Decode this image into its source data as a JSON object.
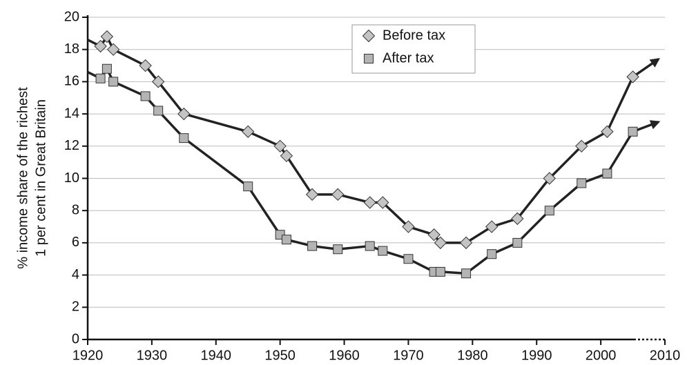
{
  "chart_data": {
    "type": "line",
    "ylabel": [
      "% income share of the richest",
      "1 per cent in Great Britain"
    ],
    "xlim": [
      1920,
      2010
    ],
    "xticks": [
      1920,
      1930,
      1940,
      1950,
      1960,
      1970,
      1980,
      1990,
      2000,
      2010
    ],
    "ylim": [
      0,
      20
    ],
    "yticks": [
      0,
      2,
      4,
      6,
      8,
      10,
      12,
      14,
      16,
      18,
      20
    ],
    "grid": true,
    "legend": "top-center",
    "x": [
      1920,
      1922,
      1923,
      1924,
      1929,
      1931,
      1935,
      1945,
      1950,
      1951,
      1955,
      1959,
      1964,
      1966,
      1970,
      1974,
      1975,
      1979,
      1983,
      1987,
      1992,
      1997,
      2001,
      2005
    ],
    "series": [
      {
        "name": "Before tax",
        "marker": "diamond",
        "color": "#c4c4c4",
        "values": [
          18.6,
          18.2,
          18.8,
          18.0,
          17.0,
          16.0,
          14.0,
          12.9,
          12.0,
          11.4,
          9.0,
          9.0,
          8.5,
          8.5,
          7.0,
          6.5,
          6.0,
          6.0,
          7.0,
          7.5,
          10.0,
          12.0,
          12.9,
          16.3
        ],
        "arrow": [
          2009,
          17.4
        ]
      },
      {
        "name": "After tax",
        "marker": "square",
        "color": "#b4b4b4",
        "values": [
          16.6,
          16.2,
          16.8,
          16.0,
          15.1,
          14.2,
          12.5,
          9.5,
          6.5,
          6.2,
          5.8,
          5.6,
          5.8,
          5.5,
          5.0,
          4.2,
          4.2,
          4.1,
          5.3,
          6.0,
          8.0,
          9.7,
          10.3,
          12.9
        ],
        "arrow": [
          2009,
          13.5
        ]
      }
    ]
  }
}
